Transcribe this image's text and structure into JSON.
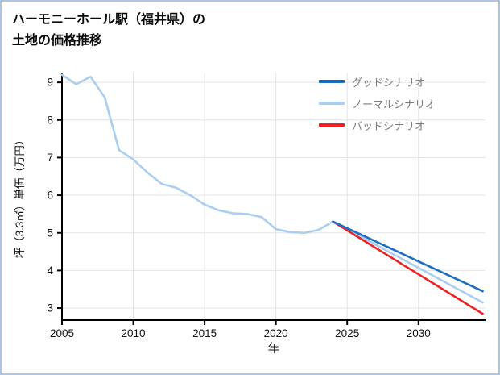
{
  "page": {
    "title_line1": "ハーモニーホール駅（福井県）の",
    "title_line2": "土地の価格推移"
  },
  "chart_data": {
    "type": "line",
    "title": "ハーモニーホール駅（福井県）の土地の価格推移",
    "xlabel": "年",
    "ylabel": "坪（3.3㎡）単価（万円）",
    "xlim": [
      2005,
      2034.7
    ],
    "ylim": [
      2.68,
      9.26
    ],
    "xticks": [
      2005,
      2010,
      2015,
      2020,
      2025,
      2030
    ],
    "yticks": [
      3,
      4,
      5,
      6,
      7,
      8,
      9
    ],
    "grid": true,
    "legend_position": "top-right",
    "axis_color": "#000000",
    "grid_color": "#e4e4e4",
    "series": [
      {
        "key": "good",
        "name": "グッドシナリオ",
        "color": "#1d6fc0",
        "x": [
          2024,
          2034.5
        ],
        "y": [
          5.3,
          3.45
        ]
      },
      {
        "key": "normal",
        "name": "ノーマルシナリオ",
        "color": "#a9cef1",
        "x": [
          2005,
          2006,
          2007,
          2008,
          2009,
          2010,
          2011,
          2012,
          2013,
          2014,
          2015,
          2016,
          2017,
          2018,
          2019,
          2020,
          2021,
          2022,
          2023,
          2024,
          2034.5
        ],
        "y": [
          9.2,
          8.95,
          9.15,
          8.6,
          7.2,
          6.95,
          6.6,
          6.3,
          6.2,
          6.0,
          5.75,
          5.6,
          5.52,
          5.5,
          5.42,
          5.1,
          5.02,
          5.0,
          5.08,
          5.3,
          3.15
        ]
      },
      {
        "key": "bad",
        "name": "バッドシナリオ",
        "color": "#ee2222",
        "x": [
          2024,
          2034.5
        ],
        "y": [
          5.3,
          2.85
        ]
      }
    ]
  }
}
